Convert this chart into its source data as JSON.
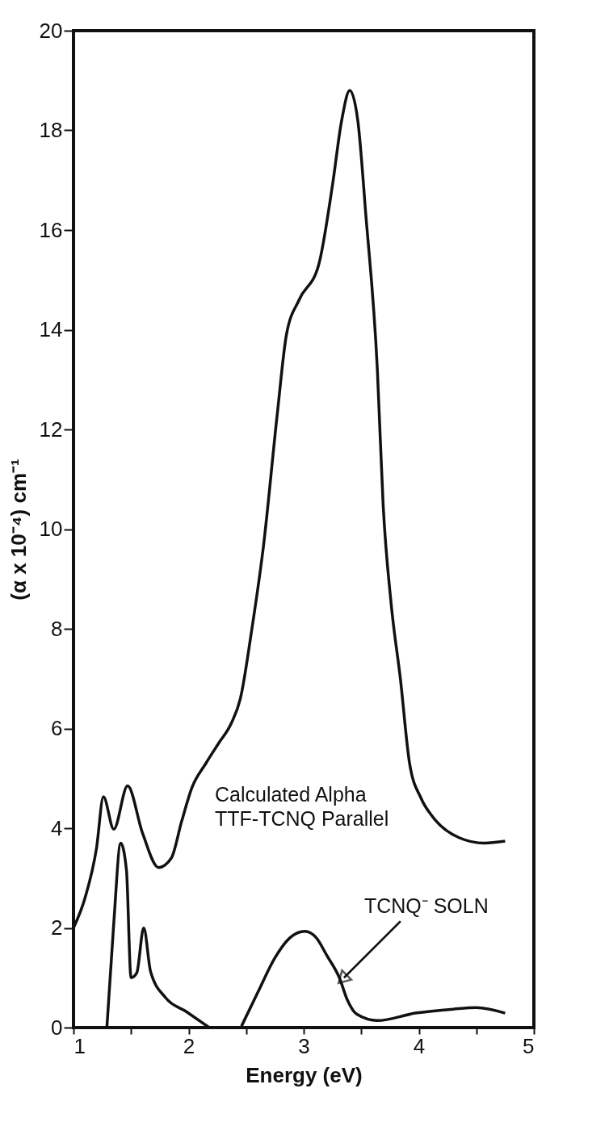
{
  "chart_data": {
    "type": "line",
    "xlabel": "Energy (eV)",
    "ylabel": "(α x 10⁻⁴) cm⁻¹",
    "xlim": [
      1,
      5
    ],
    "ylim": [
      0,
      20
    ],
    "xticks": [
      1,
      {
        "value": 1.5,
        "label": null
      },
      2,
      {
        "value": 2.5,
        "label": null
      },
      3,
      {
        "value": 3.5,
        "label": null
      },
      4,
      {
        "value": 4.5,
        "label": null
      },
      5
    ],
    "yticks": [
      0,
      2,
      4,
      6,
      8,
      10,
      12,
      14,
      16,
      18,
      20
    ],
    "grid": false,
    "marker": "none",
    "line_style": "solid",
    "annotations": [
      {
        "text": "TCNQ⁻ SOLN",
        "x": 3.35,
        "y": 1.0
      }
    ],
    "series": [
      {
        "name": "Calculated Alpha\nTTF-TCNQ Parallel",
        "color": "#111111",
        "x": [
          1.0,
          1.1,
          1.2,
          1.26,
          1.35,
          1.47,
          1.6,
          1.74,
          1.85,
          1.94,
          2.03,
          2.15,
          2.26,
          2.37,
          2.45,
          2.55,
          2.65,
          2.77,
          2.85,
          2.96,
          3.13,
          3.25,
          3.33,
          3.4,
          3.47,
          3.54,
          3.64,
          3.69,
          3.76,
          3.84,
          3.92,
          4.02,
          4.12,
          4.35,
          4.57,
          4.75
        ],
        "values": [
          2.0,
          2.6,
          3.6,
          4.63,
          3.98,
          4.85,
          3.9,
          3.21,
          3.4,
          4.14,
          4.82,
          5.3,
          5.7,
          6.1,
          6.6,
          8.0,
          9.65,
          12.3,
          13.9,
          14.6,
          15.3,
          16.9,
          18.2,
          18.8,
          18.2,
          16.3,
          13.2,
          10.5,
          8.5,
          7.0,
          5.3,
          4.6,
          4.23,
          3.81,
          3.7,
          3.74
        ]
      },
      {
        "color": "#111111",
        "x": [
          1.29,
          1.35,
          1.41,
          1.46,
          1.5,
          1.55,
          1.61,
          1.67,
          1.8,
          1.98,
          2.18,
          2.3,
          2.46,
          2.6,
          2.75,
          2.88,
          3.01,
          3.11,
          3.2,
          3.31,
          3.38,
          3.46,
          3.64,
          3.97,
          4.3,
          4.5,
          4.75
        ],
        "values": [
          0,
          2.1,
          3.7,
          3.16,
          1.0,
          1.1,
          2.0,
          1.12,
          0.6,
          0.32,
          0,
          null,
          0.03,
          0.7,
          1.4,
          1.8,
          1.93,
          1.8,
          1.45,
          1.0,
          0.55,
          0.27,
          0.14,
          0.29,
          0.37,
          0.4,
          0.29
        ]
      }
    ]
  }
}
